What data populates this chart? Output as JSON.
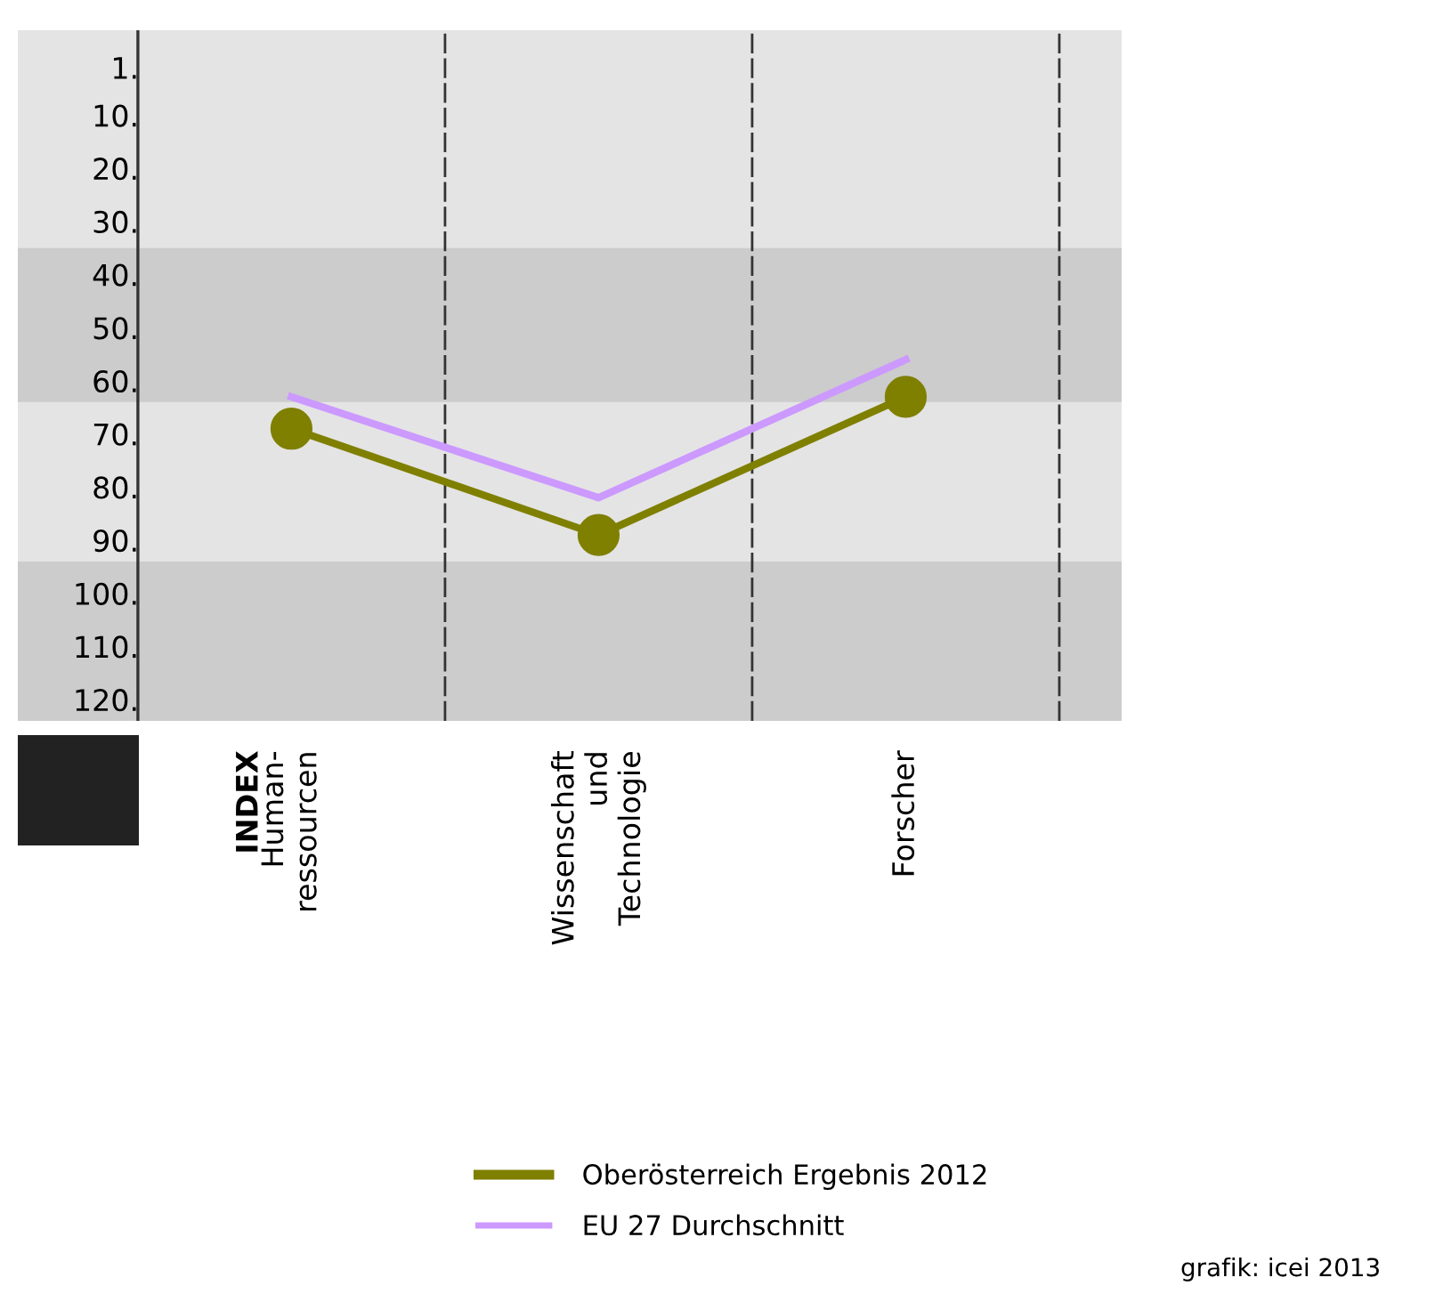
{
  "chart_data": {
    "type": "line",
    "categories": [
      "Human-\nressourcen",
      "Wissenschaft\nund\nTechnologie",
      "Forscher"
    ],
    "series": [
      {
        "name": "Oberösterreich Ergebnis 2012",
        "color": "#7f7f00",
        "marker": "circle",
        "values": [
          69,
          89,
          63
        ]
      },
      {
        "name": "EU 27 Durchschnitt",
        "color": "#cc99ff",
        "marker": "none",
        "values": [
          63,
          82,
          56
        ]
      }
    ],
    "ylim": [
      124,
      -6
    ],
    "yticks": [
      {
        "value": 1,
        "label": "1."
      },
      {
        "value": 10,
        "label": "10."
      },
      {
        "value": 20,
        "label": "20."
      },
      {
        "value": 30,
        "label": "30."
      },
      {
        "value": 40,
        "label": "40."
      },
      {
        "value": 50,
        "label": "50."
      },
      {
        "value": 60,
        "label": "60."
      },
      {
        "value": 70,
        "label": "70."
      },
      {
        "value": 80,
        "label": "80."
      },
      {
        "value": 90,
        "label": "90."
      },
      {
        "value": 100,
        "label": "100."
      },
      {
        "value": 110,
        "label": "110."
      },
      {
        "value": 120,
        "label": "120."
      }
    ],
    "bands": [
      {
        "axis": "y",
        "from": 35,
        "to": 64,
        "color": "#cccccc"
      },
      {
        "axis": "y",
        "from": 94,
        "to": 124,
        "color": "#cccccc"
      }
    ],
    "grid": "x",
    "legend": "bottom",
    "line_style": "solid",
    "annotations": [
      "INDEX",
      "grafik: icei 2013"
    ]
  }
}
